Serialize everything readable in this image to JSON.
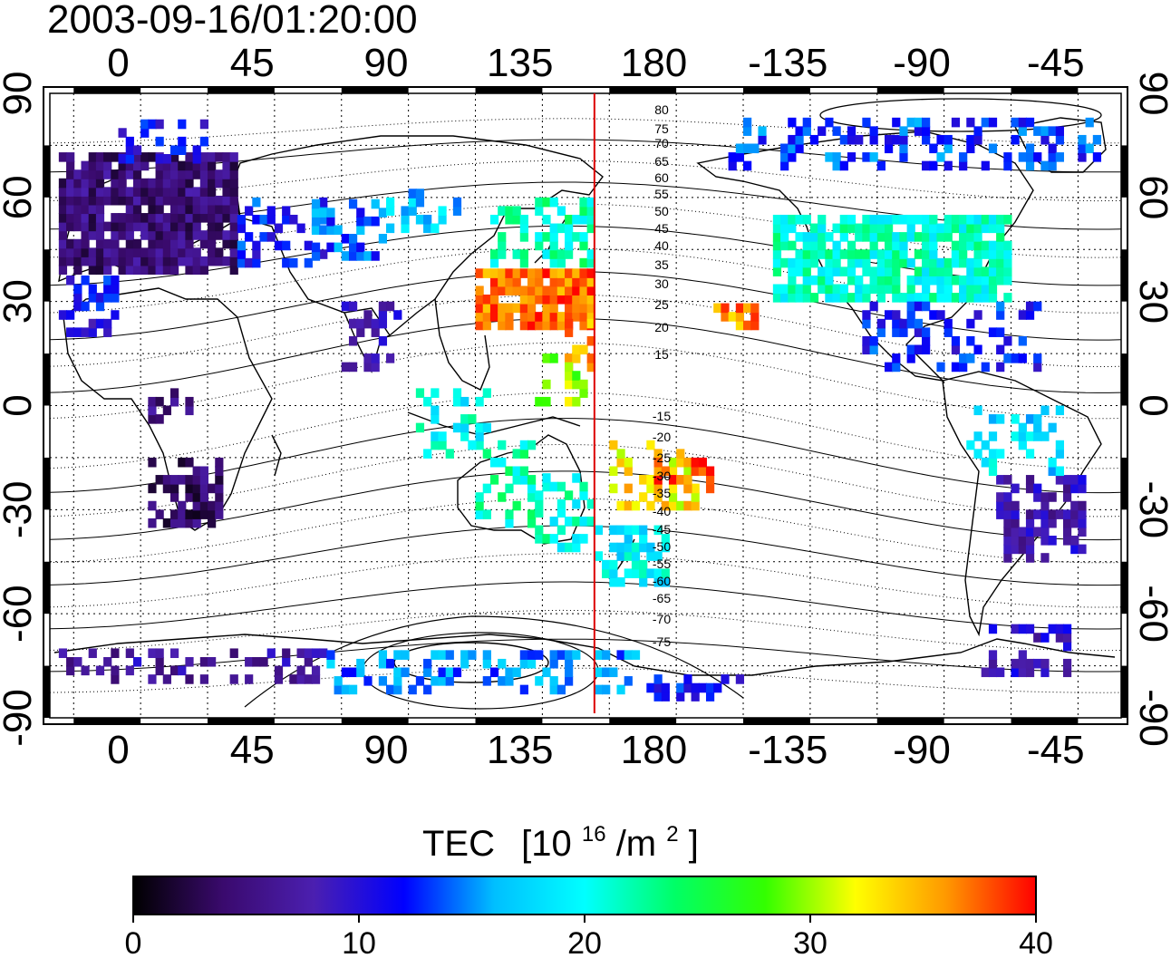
{
  "map": {
    "timestamp": "2003-09-16/01:20:00",
    "projection": "equirectangular",
    "lon_range": [
      -23,
      337
    ],
    "lat_range": [
      -90,
      90
    ],
    "top_lon_ticks": [
      "0",
      "45",
      "90",
      "135",
      "180",
      "-135",
      "-90",
      "-45"
    ],
    "bottom_lon_ticks": [
      "0",
      "45",
      "90",
      "135",
      "180",
      "-135",
      "-90",
      "-45"
    ],
    "lat_ticks": [
      "90",
      "60",
      "30",
      "0",
      "-30",
      "-60",
      "-90"
    ],
    "lat_tick_values": [
      90,
      60,
      30,
      0,
      -30,
      -60,
      -90
    ],
    "lon_tick_values": [
      0,
      45,
      90,
      135,
      180,
      225,
      270,
      315
    ],
    "meridian_line": {
      "lon": 160,
      "color": "#dd0000"
    },
    "contour_labels_north": [
      "80",
      "75",
      "70",
      "65",
      "60",
      "55",
      "50",
      "45",
      "40",
      "35",
      "30",
      "25",
      "20",
      "15"
    ],
    "contour_labels_south": [
      "-15",
      "-20",
      "-25",
      "-30",
      "-35",
      "-40",
      "-45",
      "-50",
      "-55",
      "-60",
      "-65",
      "-70",
      "-75"
    ]
  },
  "colorbar": {
    "label_main": "TEC",
    "label_unit_prefix": "[10",
    "label_unit_sup1": "16",
    "label_unit_mid": "/m",
    "label_unit_sup2": "2",
    "label_unit_suffix": "]",
    "min": 0,
    "max": 40,
    "ticks": [
      "0",
      "10",
      "20",
      "30",
      "40"
    ],
    "tick_values": [
      0,
      10,
      20,
      30,
      40
    ],
    "colors": [
      "#000000",
      "#3a0a6e",
      "#4b1fb0",
      "#0000ff",
      "#00bfff",
      "#00ffff",
      "#00ff66",
      "#33ff00",
      "#ffff00",
      "#ff9900",
      "#ff0000"
    ]
  }
}
